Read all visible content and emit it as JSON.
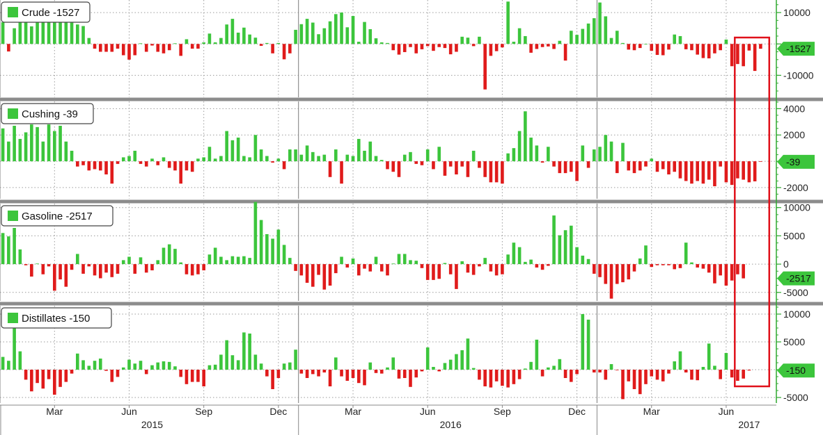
{
  "chart_data": {
    "type": "bar",
    "colors": {
      "positive": "#3cc53c",
      "negative": "#e01b1b",
      "highlight": "#e0101a",
      "separator": "#8c8c8c",
      "axis": "#2fa82f",
      "grid": "#9a9a9a"
    },
    "x_axis": {
      "month_ticks": [
        {
          "week": 9,
          "label": "Mar"
        },
        {
          "week": 22,
          "label": "Jun"
        },
        {
          "week": 35,
          "label": "Sep"
        },
        {
          "week": 48,
          "label": "Dec"
        },
        {
          "week": 61,
          "label": "Mar"
        },
        {
          "week": 74,
          "label": "Jun"
        },
        {
          "week": 87,
          "label": "Sep"
        },
        {
          "week": 100,
          "label": "Dec"
        },
        {
          "week": 113,
          "label": "Mar"
        },
        {
          "week": 126,
          "label": "Jun"
        }
      ],
      "year_labels": [
        {
          "week": 26,
          "label": "2015"
        },
        {
          "week": 78,
          "label": "2016"
        },
        {
          "week": 130,
          "label": "2017"
        }
      ],
      "year_boundaries": [
        0,
        52,
        104
      ]
    },
    "highlight_weeks": [
      128,
      133
    ],
    "panels": [
      {
        "name": "Crude",
        "legend": "Crude -1527",
        "last_label": "-1527",
        "last_value": -1527,
        "ylim": [
          -17000,
          14000
        ],
        "ticks": [
          10000,
          0,
          -10000
        ],
        "tick_labels": [
          "10000",
          "",
          "-10000"
        ],
        "values": [
          6900,
          -2400,
          5000,
          8100,
          8300,
          5600,
          8600,
          10000,
          7500,
          9600,
          8200,
          9400,
          6800,
          6200,
          5700,
          1900,
          -1500,
          -2500,
          -2500,
          -2500,
          -1500,
          -3600,
          -5000,
          -3600,
          200,
          -2500,
          -500,
          -2500,
          -3000,
          -2000,
          200,
          -3800,
          1500,
          -1500,
          -1500,
          500,
          3300,
          500,
          1900,
          6200,
          8000,
          3600,
          5200,
          3000,
          2000,
          -600,
          300,
          -3000,
          300,
          -4900,
          -3000,
          4500,
          6300,
          8000,
          6800,
          3100,
          5000,
          7200,
          9500,
          10000,
          5300,
          8900,
          700,
          7000,
          4700,
          1800,
          500,
          300,
          -2000,
          -3400,
          -2600,
          -1000,
          -3000,
          -1700,
          -700,
          -2200,
          -1000,
          -1300,
          -3300,
          -2500,
          2300,
          2000,
          -700,
          2300,
          -14500,
          -3800,
          -2300,
          -1100,
          13500,
          700,
          5000,
          2500,
          -2800,
          -1600,
          -1000,
          -800,
          -1600,
          1000,
          -5300,
          4200,
          2900,
          4800,
          6500,
          8200,
          13200,
          8800,
          1900,
          4200,
          300,
          -1800,
          -2000,
          -1300,
          0,
          -2200,
          -3500,
          -3600,
          -1800,
          3000,
          2500,
          -1700,
          -2000,
          -3400,
          -4500,
          -4600,
          -3000,
          -2000,
          1400,
          -7100,
          -6400,
          -7100,
          -2100,
          -8600,
          -1527
        ]
      },
      {
        "name": "Cushing",
        "legend": "Cushing -39",
        "last_label": "-39",
        "last_value": -39,
        "ylim": [
          -2850,
          4550
        ],
        "ticks": [
          4000,
          2000,
          0,
          -2000
        ],
        "tick_labels": [
          "4000",
          "2000",
          "",
          "-2000"
        ],
        "values": [
          2500,
          1500,
          2700,
          1700,
          2200,
          2800,
          2600,
          1500,
          2800,
          2300,
          2700,
          1500,
          800,
          -400,
          -300,
          -700,
          -600,
          -700,
          -1000,
          -1700,
          -200,
          300,
          400,
          800,
          -200,
          -400,
          200,
          -300,
          300,
          -500,
          -700,
          -1700,
          -700,
          -800,
          200,
          300,
          1100,
          200,
          400,
          2300,
          1600,
          1800,
          400,
          300,
          2000,
          900,
          400,
          -100,
          200,
          -600,
          900,
          900,
          500,
          1200,
          700,
          400,
          500,
          -1200,
          900,
          -1700,
          500,
          400,
          1700,
          800,
          1500,
          400,
          100,
          -600,
          -800,
          -1200,
          500,
          700,
          -200,
          -300,
          900,
          -600,
          1100,
          -1100,
          -400,
          -1000,
          -400,
          -1200,
          800,
          -500,
          -1200,
          -1600,
          -1600,
          -1700,
          600,
          1000,
          2300,
          3800,
          1800,
          1200,
          -100,
          1100,
          -400,
          -900,
          -900,
          -800,
          -1500,
          1200,
          -500,
          900,
          1100,
          2000,
          1500,
          -900,
          1400,
          -700,
          -900,
          -700,
          -400,
          200,
          -800,
          -600,
          -1000,
          -800,
          -1300,
          -1500,
          -1700,
          -1500,
          -1700,
          -1400,
          -1900,
          -400,
          -1600,
          -1800,
          -1300,
          -1400,
          -1600,
          -1527,
          -39
        ]
      },
      {
        "name": "Gasoline",
        "legend": "Gasoline -2517",
        "last_label": "-2517",
        "last_value": -2517,
        "ylim": [
          -6500,
          10700
        ],
        "ticks": [
          10000,
          5000,
          0,
          -5000
        ],
        "tick_labels": [
          "10000",
          "5000",
          "0",
          "-5000"
        ],
        "values": [
          5500,
          4900,
          6400,
          2600,
          -200,
          -2200,
          100,
          -1800,
          -400,
          -4700,
          -2700,
          -4000,
          -1000,
          1800,
          -1700,
          -400,
          -2000,
          -2500,
          -1500,
          -2300,
          -1700,
          700,
          1300,
          -1700,
          1200,
          -1500,
          -1100,
          700,
          2900,
          3500,
          2700,
          300,
          -1800,
          -2000,
          -1800,
          -1100,
          1700,
          2900,
          1300,
          700,
          1400,
          1300,
          1400,
          1100,
          11000,
          7800,
          5300,
          4500,
          6100,
          3400,
          1100,
          -1200,
          -2000,
          -3300,
          -4000,
          -1900,
          -4500,
          -3800,
          -1600,
          1300,
          -600,
          1000,
          -2000,
          -800,
          -1300,
          1300,
          -1300,
          -2000,
          100,
          1800,
          1800,
          700,
          600,
          -700,
          -2800,
          -2800,
          -2600,
          200,
          -1800,
          -4400,
          500,
          -1500,
          -1900,
          -400,
          1100,
          -1300,
          -2000,
          -1800,
          1700,
          3800,
          3000,
          400,
          800,
          -600,
          -1000,
          -300,
          8600,
          5100,
          6000,
          6800,
          3000,
          1500,
          900,
          -1700,
          -2300,
          -3500,
          -6100,
          -3500,
          -3200,
          -2700,
          -1300,
          1000,
          3300,
          -500,
          -200,
          -200,
          -200,
          -900,
          -700,
          3800,
          300,
          -600,
          -800,
          -1500,
          -3400,
          -2000,
          -3800,
          -2900,
          -1800,
          -2517
        ]
      },
      {
        "name": "Distillates",
        "legend": "Distillates -150",
        "last_label": "-150",
        "last_value": -150,
        "ylim": [
          -6000,
          11500
        ],
        "ticks": [
          10000,
          5000,
          0,
          -5000
        ],
        "tick_labels": [
          "10000",
          "5000",
          "",
          "-5000"
        ],
        "values": [
          2300,
          1600,
          7500,
          3300,
          -1800,
          -3900,
          -2400,
          -3400,
          -1700,
          -4500,
          -3100,
          -2200,
          -700,
          2900,
          1700,
          700,
          1600,
          2000,
          -200,
          -2200,
          -1300,
          400,
          1800,
          1100,
          1600,
          -800,
          800,
          1300,
          1500,
          1400,
          600,
          -1300,
          -2600,
          -2200,
          -2200,
          -3000,
          800,
          900,
          2700,
          5300,
          2600,
          1700,
          6700,
          6500,
          2700,
          1100,
          -1200,
          -3500,
          -1500,
          1100,
          1300,
          3600,
          -700,
          -1500,
          -800,
          -1200,
          -500,
          -3000,
          2200,
          -1200,
          -2000,
          -1500,
          -2400,
          -2800,
          1300,
          -600,
          -700,
          400,
          2200,
          -1600,
          -1500,
          -3100,
          -1400,
          -300,
          4000,
          500,
          -300,
          1200,
          1800,
          2800,
          3500,
          5600,
          300,
          -1800,
          -3000,
          -3200,
          -2100,
          -2900,
          -3200,
          -2600,
          -1700,
          200,
          1400,
          5400,
          -1200,
          400,
          700,
          1900,
          -1500,
          -2200,
          -800,
          10000,
          9000,
          -500,
          -500,
          -1800,
          1000,
          -100,
          -5300,
          -2100,
          -3500,
          -4400,
          -2600,
          -1200,
          -1800,
          -2100,
          -700,
          1500,
          3300,
          -500,
          -1800,
          -1900,
          500,
          4700,
          700,
          -1700,
          3000,
          -1400,
          -2000,
          -1600,
          -150
        ]
      }
    ]
  }
}
